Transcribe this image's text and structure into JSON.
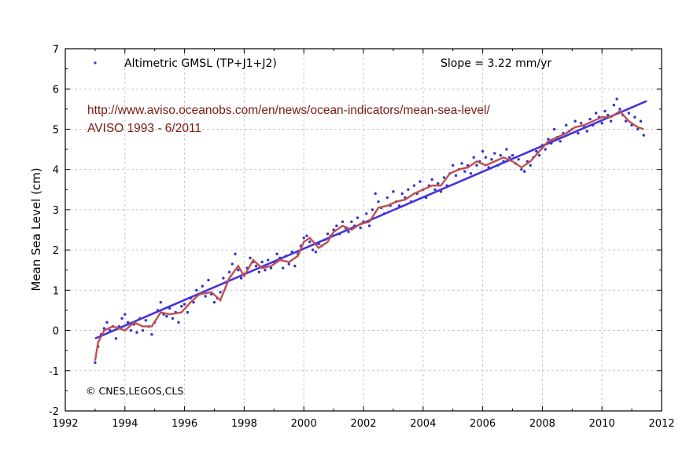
{
  "chart_data": {
    "type": "scatter",
    "title": "",
    "xlabel": "",
    "ylabel": "Mean Sea Level (cm)",
    "xlim": [
      1992,
      2012
    ],
    "ylim": [
      -2,
      7
    ],
    "xticks": [
      1992,
      1994,
      1996,
      1998,
      2000,
      2002,
      2004,
      2006,
      2008,
      2010,
      2012
    ],
    "yticks": [
      -2,
      -1,
      0,
      1,
      2,
      3,
      4,
      5,
      6,
      7
    ],
    "grid": true,
    "legend": {
      "position": "top-left",
      "label": "Altimetric GMSL (TP+J1+J2)"
    },
    "slope_label": "Slope = 3.22 mm/yr",
    "annotations": {
      "url": "http://www.aviso.oceanobs.com/en/news/ocean-indicators/mean-sea-level/",
      "period": "AVISO 1993 - 6/2011",
      "credit": "© CNES,LEGOS,CLS"
    },
    "colors": {
      "points": "#3333cc",
      "trend": "#4433dd",
      "smooth": "#c0504d"
    },
    "trend_line": {
      "x": [
        1993.0,
        2011.5
      ],
      "y": [
        -0.2,
        5.7
      ]
    },
    "smoothed": {
      "x": [
        1993.0,
        1993.1,
        1993.3,
        1993.6,
        1994.0,
        1994.3,
        1994.6,
        1994.9,
        1995.2,
        1995.5,
        1995.9,
        1996.2,
        1996.5,
        1996.9,
        1997.2,
        1997.5,
        1997.8,
        1998.0,
        1998.3,
        1998.6,
        1998.9,
        1999.2,
        1999.5,
        1999.8,
        2000.0,
        2000.2,
        2000.5,
        2000.8,
        2001.0,
        2001.3,
        2001.6,
        2001.9,
        2002.2,
        2002.5,
        2002.8,
        2003.1,
        2003.4,
        2003.7,
        2004.0,
        2004.3,
        2004.6,
        2004.9,
        2005.2,
        2005.5,
        2005.8,
        2006.1,
        2006.4,
        2006.7,
        2007.0,
        2007.3,
        2007.6,
        2007.9,
        2008.2,
        2008.5,
        2008.8,
        2009.1,
        2009.4,
        2009.7,
        2010.0,
        2010.3,
        2010.6,
        2010.9,
        2011.2,
        2011.4
      ],
      "y": [
        -0.75,
        -0.3,
        0.0,
        0.1,
        0.0,
        0.2,
        0.1,
        0.1,
        0.45,
        0.4,
        0.45,
        0.7,
        0.9,
        0.95,
        0.75,
        1.3,
        1.6,
        1.35,
        1.75,
        1.55,
        1.6,
        1.75,
        1.7,
        1.85,
        2.2,
        2.3,
        2.05,
        2.2,
        2.45,
        2.6,
        2.5,
        2.65,
        2.7,
        3.05,
        3.1,
        3.2,
        3.25,
        3.4,
        3.5,
        3.6,
        3.6,
        3.9,
        4.0,
        4.05,
        4.2,
        4.1,
        4.2,
        4.3,
        4.2,
        4.05,
        4.2,
        4.45,
        4.7,
        4.8,
        4.9,
        5.05,
        5.1,
        5.2,
        5.3,
        5.3,
        5.45,
        5.2,
        5.05,
        5.0
      ]
    },
    "observations": {
      "x": [
        1993.0,
        1993.1,
        1993.2,
        1993.3,
        1993.4,
        1993.5,
        1993.6,
        1993.7,
        1993.8,
        1993.9,
        1994.0,
        1994.1,
        1994.2,
        1994.3,
        1994.4,
        1994.5,
        1994.6,
        1994.7,
        1994.8,
        1994.9,
        1995.0,
        1995.1,
        1995.2,
        1995.3,
        1995.4,
        1995.5,
        1995.6,
        1995.7,
        1995.8,
        1995.9,
        1996.0,
        1996.1,
        1996.2,
        1996.3,
        1996.4,
        1996.5,
        1996.6,
        1996.7,
        1996.8,
        1996.9,
        1997.0,
        1997.1,
        1997.2,
        1997.3,
        1997.4,
        1997.5,
        1997.6,
        1997.7,
        1997.8,
        1997.9,
        1998.0,
        1998.1,
        1998.2,
        1998.3,
        1998.4,
        1998.5,
        1998.6,
        1998.7,
        1998.8,
        1998.9,
        1999.0,
        1999.1,
        1999.2,
        1999.3,
        1999.4,
        1999.5,
        1999.6,
        1999.7,
        1999.8,
        1999.9,
        2000.0,
        2000.1,
        2000.2,
        2000.3,
        2000.4,
        2000.5,
        2000.6,
        2000.7,
        2000.8,
        2000.9,
        2001.0,
        2001.1,
        2001.2,
        2001.3,
        2001.4,
        2001.5,
        2001.6,
        2001.7,
        2001.8,
        2001.9,
        2002.0,
        2002.1,
        2002.2,
        2002.3,
        2002.4,
        2002.5,
        2002.6,
        2002.7,
        2002.8,
        2002.9,
        2003.0,
        2003.1,
        2003.2,
        2003.3,
        2003.4,
        2003.5,
        2003.6,
        2003.7,
        2003.8,
        2003.9,
        2004.0,
        2004.1,
        2004.2,
        2004.3,
        2004.4,
        2004.5,
        2004.6,
        2004.7,
        2004.8,
        2004.9,
        2005.0,
        2005.1,
        2005.2,
        2005.3,
        2005.4,
        2005.5,
        2005.6,
        2005.7,
        2005.8,
        2005.9,
        2006.0,
        2006.1,
        2006.2,
        2006.3,
        2006.4,
        2006.5,
        2006.6,
        2006.7,
        2006.8,
        2006.9,
        2007.0,
        2007.1,
        2007.2,
        2007.3,
        2007.4,
        2007.5,
        2007.6,
        2007.7,
        2007.8,
        2007.9,
        2008.0,
        2008.1,
        2008.2,
        2008.3,
        2008.4,
        2008.5,
        2008.6,
        2008.7,
        2008.8,
        2008.9,
        2009.0,
        2009.1,
        2009.2,
        2009.3,
        2009.4,
        2009.5,
        2009.6,
        2009.7,
        2009.8,
        2009.9,
        2010.0,
        2010.1,
        2010.2,
        2010.3,
        2010.4,
        2010.5,
        2010.6,
        2010.7,
        2010.8,
        2010.9,
        2011.0,
        2011.1,
        2011.2,
        2011.3,
        2011.4
      ],
      "y": [
        -0.8,
        -0.4,
        -0.1,
        0.05,
        0.2,
        0.0,
        0.1,
        -0.2,
        0.1,
        0.3,
        0.4,
        0.2,
        0.0,
        0.15,
        -0.05,
        0.3,
        0.0,
        0.25,
        0.1,
        -0.1,
        0.2,
        0.5,
        0.7,
        0.4,
        0.35,
        0.55,
        0.3,
        0.45,
        0.2,
        0.6,
        0.65,
        0.45,
        0.8,
        0.7,
        1.0,
        0.9,
        1.1,
        0.85,
        1.25,
        0.9,
        0.7,
        0.8,
        0.95,
        1.3,
        1.2,
        1.45,
        1.65,
        1.9,
        1.5,
        1.3,
        1.4,
        1.55,
        1.8,
        1.7,
        1.6,
        1.45,
        1.7,
        1.5,
        1.75,
        1.55,
        1.7,
        1.9,
        1.8,
        1.55,
        1.85,
        1.65,
        1.95,
        1.6,
        1.9,
        2.1,
        2.3,
        2.35,
        2.2,
        2.0,
        1.95,
        2.15,
        2.1,
        2.25,
        2.4,
        2.35,
        2.5,
        2.6,
        2.4,
        2.7,
        2.55,
        2.45,
        2.7,
        2.6,
        2.8,
        2.55,
        2.7,
        2.9,
        2.6,
        3.0,
        3.4,
        3.2,
        3.05,
        2.9,
        3.3,
        3.1,
        3.45,
        3.2,
        3.1,
        3.4,
        3.3,
        3.5,
        3.2,
        3.6,
        3.4,
        3.7,
        3.5,
        3.3,
        3.6,
        3.75,
        3.5,
        3.65,
        3.45,
        3.8,
        3.6,
        3.9,
        4.1,
        3.85,
        4.0,
        4.15,
        3.95,
        4.1,
        3.9,
        4.3,
        4.1,
        4.2,
        4.45,
        4.3,
        4.05,
        4.25,
        4.4,
        4.1,
        4.35,
        4.2,
        4.5,
        4.3,
        4.35,
        4.15,
        4.25,
        4.0,
        3.95,
        4.2,
        4.1,
        4.3,
        4.45,
        4.35,
        4.6,
        4.5,
        4.75,
        4.65,
        5.0,
        4.8,
        4.7,
        4.9,
        5.1,
        4.95,
        5.0,
        5.2,
        4.9,
        5.15,
        5.05,
        4.95,
        5.25,
        5.1,
        5.4,
        5.3,
        5.15,
        5.45,
        5.35,
        5.2,
        5.6,
        5.75,
        5.5,
        5.35,
        5.2,
        5.4,
        5.1,
        5.3,
        5.0,
        5.2,
        4.85
      ]
    }
  }
}
